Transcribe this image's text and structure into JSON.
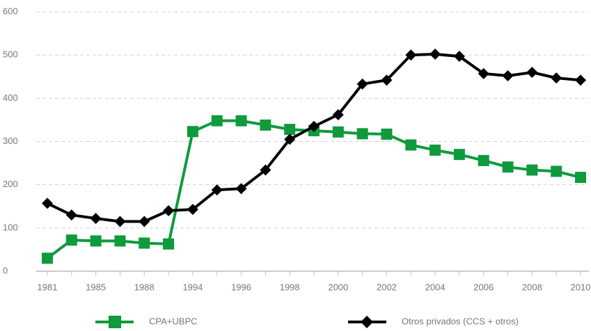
{
  "chart_data": {
    "type": "line",
    "categories": [
      "1981",
      null,
      "1985",
      null,
      "1988",
      null,
      "1994",
      null,
      "1996",
      null,
      "1998",
      null,
      "2000",
      null,
      "2002",
      null,
      "2004",
      null,
      "2006",
      null,
      "2008",
      null,
      "2010"
    ],
    "series": [
      {
        "name": "CPA+UBPC",
        "color": "#0f9a3c",
        "marker": "square",
        "values": [
          30,
          72,
          70,
          70,
          65,
          63,
          323,
          348,
          348,
          338,
          328,
          325,
          322,
          318,
          317,
          292,
          280,
          270,
          256,
          241,
          234,
          231,
          217
        ]
      },
      {
        "name": "Otros privados (CCS + otros)",
        "color": "#000000",
        "marker": "diamond",
        "values": [
          157,
          130,
          122,
          115,
          115,
          140,
          143,
          188,
          191,
          234,
          305,
          335,
          362,
          433,
          442,
          500,
          502,
          497,
          457,
          452,
          460,
          447,
          442
        ]
      }
    ],
    "ylim": [
      0,
      600
    ],
    "yticks": [
      0,
      100,
      200,
      300,
      400,
      500,
      600
    ],
    "grid": true,
    "legend": "bottom"
  }
}
